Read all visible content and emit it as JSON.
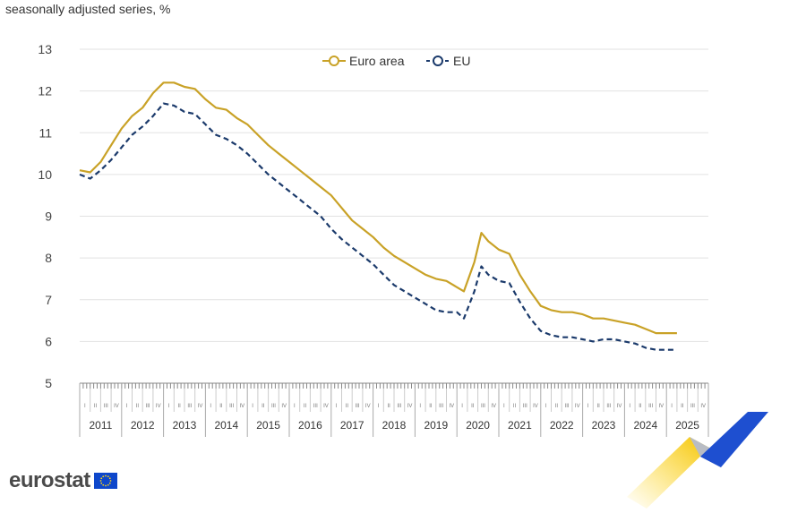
{
  "subtitle": "seasonally adjusted series, %",
  "brand": {
    "name": "eurostat"
  },
  "colors": {
    "euro_area": "#c9a227",
    "eu": "#1b3a6b",
    "grid": "#e2e2e2",
    "flag_blue": "#0e47cb",
    "flag_stars": "#ffd617"
  },
  "chart_data": {
    "type": "line",
    "title": "",
    "subtitle": "seasonally adjusted series, %",
    "xlabel": "",
    "ylabel": "",
    "ylim": [
      5,
      13
    ],
    "yticks": [
      5,
      6,
      7,
      8,
      9,
      10,
      11,
      12,
      13
    ],
    "grid": true,
    "legend_position": "top-center",
    "years": [
      "2011",
      "2012",
      "2013",
      "2014",
      "2015",
      "2016",
      "2017",
      "2018",
      "2019",
      "2020",
      "2021",
      "2022",
      "2023",
      "2024",
      "2025"
    ],
    "quarters": [
      "I",
      "II",
      "III",
      "IV"
    ],
    "x_start": "2011-01",
    "x_end": "2025-12",
    "series": [
      {
        "name": "Euro area",
        "style": "solid",
        "color": "#c9a227",
        "points": [
          [
            "2011-01",
            10.1
          ],
          [
            "2011-04",
            10.05
          ],
          [
            "2011-07",
            10.3
          ],
          [
            "2011-10",
            10.7
          ],
          [
            "2012-01",
            11.1
          ],
          [
            "2012-04",
            11.4
          ],
          [
            "2012-07",
            11.6
          ],
          [
            "2012-10",
            11.95
          ],
          [
            "2013-01",
            12.2
          ],
          [
            "2013-04",
            12.2
          ],
          [
            "2013-07",
            12.1
          ],
          [
            "2013-10",
            12.05
          ],
          [
            "2014-01",
            11.8
          ],
          [
            "2014-04",
            11.6
          ],
          [
            "2014-07",
            11.55
          ],
          [
            "2014-10",
            11.35
          ],
          [
            "2015-01",
            11.2
          ],
          [
            "2015-04",
            10.95
          ],
          [
            "2015-07",
            10.7
          ],
          [
            "2015-10",
            10.5
          ],
          [
            "2016-01",
            10.3
          ],
          [
            "2016-04",
            10.1
          ],
          [
            "2016-07",
            9.9
          ],
          [
            "2016-10",
            9.7
          ],
          [
            "2017-01",
            9.5
          ],
          [
            "2017-04",
            9.2
          ],
          [
            "2017-07",
            8.9
          ],
          [
            "2017-10",
            8.7
          ],
          [
            "2018-01",
            8.5
          ],
          [
            "2018-04",
            8.25
          ],
          [
            "2018-07",
            8.05
          ],
          [
            "2018-10",
            7.9
          ],
          [
            "2019-01",
            7.75
          ],
          [
            "2019-04",
            7.6
          ],
          [
            "2019-07",
            7.5
          ],
          [
            "2019-10",
            7.45
          ],
          [
            "2020-01",
            7.3
          ],
          [
            "2020-03",
            7.2
          ],
          [
            "2020-06",
            7.9
          ],
          [
            "2020-08",
            8.6
          ],
          [
            "2020-10",
            8.4
          ],
          [
            "2021-01",
            8.2
          ],
          [
            "2021-04",
            8.1
          ],
          [
            "2021-07",
            7.6
          ],
          [
            "2021-10",
            7.2
          ],
          [
            "2022-01",
            6.85
          ],
          [
            "2022-04",
            6.75
          ],
          [
            "2022-07",
            6.7
          ],
          [
            "2022-10",
            6.7
          ],
          [
            "2023-01",
            6.65
          ],
          [
            "2023-04",
            6.55
          ],
          [
            "2023-07",
            6.55
          ],
          [
            "2023-10",
            6.5
          ],
          [
            "2024-01",
            6.45
          ],
          [
            "2024-04",
            6.4
          ],
          [
            "2024-07",
            6.3
          ],
          [
            "2024-10",
            6.2
          ],
          [
            "2025-01",
            6.2
          ],
          [
            "2025-04",
            6.2
          ]
        ]
      },
      {
        "name": "EU",
        "style": "dashed",
        "color": "#1b3a6b",
        "points": [
          [
            "2011-01",
            10.0
          ],
          [
            "2011-04",
            9.9
          ],
          [
            "2011-07",
            10.1
          ],
          [
            "2011-10",
            10.35
          ],
          [
            "2012-01",
            10.65
          ],
          [
            "2012-04",
            10.95
          ],
          [
            "2012-07",
            11.15
          ],
          [
            "2012-10",
            11.4
          ],
          [
            "2013-01",
            11.7
          ],
          [
            "2013-04",
            11.65
          ],
          [
            "2013-07",
            11.5
          ],
          [
            "2013-10",
            11.45
          ],
          [
            "2014-01",
            11.2
          ],
          [
            "2014-04",
            10.95
          ],
          [
            "2014-07",
            10.85
          ],
          [
            "2014-10",
            10.7
          ],
          [
            "2015-01",
            10.5
          ],
          [
            "2015-04",
            10.25
          ],
          [
            "2015-07",
            10.0
          ],
          [
            "2015-10",
            9.8
          ],
          [
            "2016-01",
            9.6
          ],
          [
            "2016-04",
            9.4
          ],
          [
            "2016-07",
            9.2
          ],
          [
            "2016-10",
            9.0
          ],
          [
            "2017-01",
            8.7
          ],
          [
            "2017-04",
            8.45
          ],
          [
            "2017-07",
            8.25
          ],
          [
            "2017-10",
            8.05
          ],
          [
            "2018-01",
            7.85
          ],
          [
            "2018-04",
            7.6
          ],
          [
            "2018-07",
            7.35
          ],
          [
            "2018-10",
            7.2
          ],
          [
            "2019-01",
            7.05
          ],
          [
            "2019-04",
            6.9
          ],
          [
            "2019-07",
            6.75
          ],
          [
            "2019-10",
            6.7
          ],
          [
            "2020-01",
            6.7
          ],
          [
            "2020-03",
            6.55
          ],
          [
            "2020-06",
            7.2
          ],
          [
            "2020-08",
            7.8
          ],
          [
            "2020-10",
            7.6
          ],
          [
            "2021-01",
            7.45
          ],
          [
            "2021-04",
            7.4
          ],
          [
            "2021-07",
            6.95
          ],
          [
            "2021-10",
            6.55
          ],
          [
            "2022-01",
            6.25
          ],
          [
            "2022-04",
            6.15
          ],
          [
            "2022-07",
            6.1
          ],
          [
            "2022-10",
            6.1
          ],
          [
            "2023-01",
            6.05
          ],
          [
            "2023-04",
            6.0
          ],
          [
            "2023-07",
            6.05
          ],
          [
            "2023-10",
            6.05
          ],
          [
            "2024-01",
            6.0
          ],
          [
            "2024-04",
            5.95
          ],
          [
            "2024-07",
            5.85
          ],
          [
            "2024-10",
            5.8
          ],
          [
            "2025-01",
            5.8
          ],
          [
            "2025-04",
            5.8
          ]
        ]
      }
    ]
  }
}
